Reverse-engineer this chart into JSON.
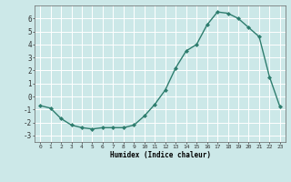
{
  "x": [
    0,
    1,
    2,
    3,
    4,
    5,
    6,
    7,
    8,
    9,
    10,
    11,
    12,
    13,
    14,
    15,
    16,
    17,
    18,
    19,
    20,
    21,
    22,
    23
  ],
  "y": [
    -0.7,
    -0.9,
    -1.7,
    -2.2,
    -2.4,
    -2.5,
    -2.4,
    -2.4,
    -2.4,
    -2.2,
    -1.5,
    -0.6,
    0.5,
    2.2,
    3.5,
    4.0,
    5.5,
    6.5,
    6.4,
    6.0,
    5.3,
    4.6,
    1.5,
    -0.8
  ],
  "title": "",
  "xlabel": "Humidex (Indice chaleur)",
  "line_color": "#2e7d6e",
  "marker": "D",
  "marker_size": 2.0,
  "bg_color": "#cce8e8",
  "grid_color": "#ffffff",
  "xlim": [
    -0.5,
    23.5
  ],
  "ylim": [
    -3.5,
    7.0
  ],
  "yticks": [
    -3,
    -2,
    -1,
    0,
    1,
    2,
    3,
    4,
    5,
    6
  ],
  "xticks": [
    0,
    1,
    2,
    3,
    4,
    5,
    6,
    7,
    8,
    9,
    10,
    11,
    12,
    13,
    14,
    15,
    16,
    17,
    18,
    19,
    20,
    21,
    22,
    23
  ]
}
